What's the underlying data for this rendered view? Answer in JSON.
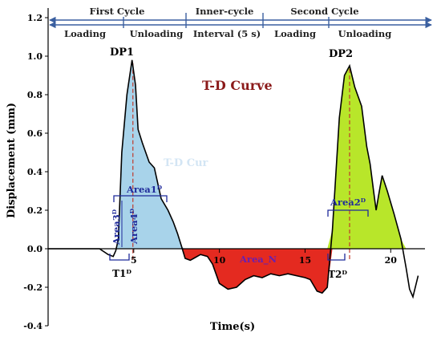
{
  "chart_data": {
    "type": "area",
    "title": "T-D Curve",
    "xlabel": "Time(s)",
    "ylabel": "Displacement (mm)",
    "xlim": [
      0,
      22
    ],
    "ylim": [
      -0.4,
      1.2
    ],
    "x_ticks": [
      5,
      10,
      15,
      20
    ],
    "x_tick_labels": [
      "5",
      "10",
      "15",
      "20"
    ],
    "y_ticks": [
      -0.4,
      -0.2,
      0.0,
      0.2,
      0.4,
      0.6,
      0.8,
      1.0,
      1.2
    ],
    "y_tick_labels": [
      "-0.4",
      "-0.2",
      "0.0",
      "0.2",
      "0.4",
      "0.6",
      "0.8",
      "1.0",
      "1.2"
    ],
    "grid": false,
    "series": [
      {
        "color": "#000000",
        "x": [
          0.0,
          1.0,
          2.0,
          3.0,
          3.5,
          3.8,
          3.95,
          4.1,
          4.3,
          4.6,
          4.9,
          5.1,
          5.25,
          5.5,
          5.9,
          6.2,
          6.6,
          7.0,
          7.3,
          7.55,
          7.8,
          8.0,
          8.3,
          8.5,
          8.9,
          9.3,
          9.6,
          10.0,
          10.5,
          11.0,
          11.5,
          12.0,
          12.5,
          13.0,
          13.5,
          14.0,
          14.5,
          15.0,
          15.3,
          15.7,
          16.0,
          16.3,
          16.6,
          17.0,
          17.3,
          17.6,
          17.9,
          18.3,
          18.6,
          18.8,
          19.0,
          19.15,
          19.3,
          19.5,
          19.8,
          20.2,
          20.6,
          20.9,
          21.1,
          21.3,
          21.6
        ],
        "y": [
          0.0,
          0.0,
          0.0,
          0.0,
          -0.03,
          -0.04,
          -0.01,
          0.05,
          0.5,
          0.8,
          0.98,
          0.85,
          0.62,
          0.55,
          0.45,
          0.42,
          0.26,
          0.2,
          0.14,
          0.08,
          0.01,
          -0.05,
          -0.06,
          -0.05,
          -0.03,
          -0.04,
          -0.08,
          -0.18,
          -0.21,
          -0.2,
          -0.16,
          -0.14,
          -0.15,
          -0.13,
          -0.14,
          -0.13,
          -0.14,
          -0.15,
          -0.16,
          -0.22,
          -0.23,
          -0.2,
          0.1,
          0.68,
          0.9,
          0.95,
          0.84,
          0.74,
          0.53,
          0.44,
          0.3,
          0.2,
          0.28,
          0.38,
          0.3,
          0.18,
          0.05,
          -0.1,
          -0.21,
          -0.25,
          -0.14
        ]
      }
    ],
    "phases_row1": [
      "First Cycle",
      "Inner-cycle",
      "Second Cycle"
    ],
    "phases_row2": [
      "Loading",
      "Unloading",
      "Interval (5 s)",
      "Loading",
      "Unloading"
    ],
    "peaks": [
      {
        "label": "DP1",
        "x": 4.95,
        "y": 0.98
      },
      {
        "label": "DP2",
        "x": 17.6,
        "y": 0.95
      }
    ],
    "areas": [
      {
        "label": "Area1ᴰ",
        "color": "#a8d3ea"
      },
      {
        "label": "Area2ᴰ",
        "color": "#b8e62a"
      },
      {
        "label": "Area3ᴰ",
        "color": "#a8d3ea"
      },
      {
        "label": "Area4ᴰ",
        "color": "#a8d3ea"
      },
      {
        "label": "Area_N",
        "color": "#e42a20"
      }
    ],
    "intervals": [
      {
        "label": "T1ᴰ"
      },
      {
        "label": "T2ᴰ"
      }
    ],
    "ghost_text": "T-D Cur"
  },
  "colors": {
    "phase_arrows": "#3a5fa0",
    "peak_line": "#c0392b",
    "area_labels": "#1f2a9a",
    "title": "#8b1a1a"
  }
}
